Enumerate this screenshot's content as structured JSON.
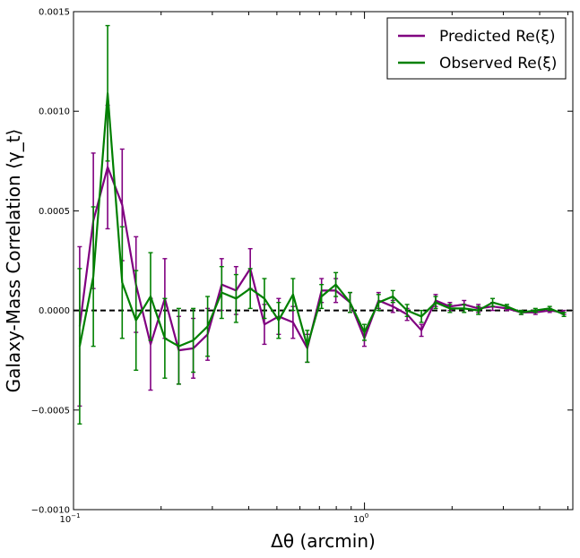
{
  "chart_data": {
    "type": "line",
    "xlabel": "Δθ (arcmin)",
    "ylabel": "Galaxy-Mass Correlation ⟨γ_t⟩",
    "xscale": "log",
    "xlim": [
      0.1,
      5.2
    ],
    "ylim": [
      -0.001,
      0.0015
    ],
    "xticks": [
      {
        "value": 0.1,
        "base": "10",
        "exp": "−1"
      },
      {
        "value": 1,
        "base": "10",
        "exp": "0"
      }
    ],
    "yticks": [
      {
        "value": -0.001,
        "label": "−0.0010"
      },
      {
        "value": -0.0005,
        "label": "−0.0005"
      },
      {
        "value": 0.0,
        "label": "0.0000"
      },
      {
        "value": 0.0005,
        "label": "0.0005"
      },
      {
        "value": 0.001,
        "label": "0.0010"
      },
      {
        "value": 0.0015,
        "label": "0.0015"
      }
    ],
    "reference_line": {
      "y": 0.0,
      "style": "dashed",
      "color": "#000000"
    },
    "legend_position": "top-right",
    "series": [
      {
        "name": "Predicted Re(ξ)",
        "color": "#800080",
        "x": [
          0.105,
          0.117,
          0.131,
          0.147,
          0.164,
          0.184,
          0.206,
          0.23,
          0.258,
          0.289,
          0.323,
          0.362,
          0.405,
          0.453,
          0.507,
          0.568,
          0.636,
          0.712,
          0.797,
          0.892,
          0.999,
          1.118,
          1.252,
          1.401,
          1.569,
          1.756,
          1.966,
          2.2,
          2.463,
          2.757,
          3.087,
          3.455,
          3.868,
          4.33,
          4.847
        ],
        "y": [
          -8e-05,
          0.00045,
          0.00072,
          0.00053,
          0.00013,
          -0.00017,
          6e-05,
          -0.0002,
          -0.00019,
          -0.00012,
          0.00013,
          0.0001,
          0.00021,
          -7e-05,
          -3e-05,
          -6e-05,
          -0.00019,
          0.0001,
          0.0001,
          4e-05,
          -0.00014,
          5e-05,
          2e-05,
          -2e-05,
          -0.0001,
          5e-05,
          2e-05,
          3e-05,
          1e-05,
          2e-05,
          1e-05,
          -1e-05,
          -1e-05,
          0.0,
          -1e-05
        ],
        "err": [
          0.0004,
          0.00034,
          0.00031,
          0.00028,
          0.00024,
          0.00023,
          0.0002,
          0.00017,
          0.00015,
          0.00013,
          0.00013,
          0.00012,
          0.0001,
          0.0001,
          9e-05,
          8e-05,
          7e-05,
          6e-05,
          6e-05,
          5e-05,
          4e-05,
          4e-05,
          3e-05,
          3e-05,
          3e-05,
          3e-05,
          2e-05,
          2e-05,
          2e-05,
          2e-05,
          1e-05,
          1e-05,
          1e-05,
          1e-05,
          1e-05
        ]
      },
      {
        "name": "Observed Re(ξ)",
        "color": "#008000",
        "x": [
          0.105,
          0.117,
          0.131,
          0.147,
          0.164,
          0.184,
          0.206,
          0.23,
          0.258,
          0.289,
          0.323,
          0.362,
          0.405,
          0.453,
          0.507,
          0.568,
          0.636,
          0.712,
          0.797,
          0.892,
          0.999,
          1.118,
          1.252,
          1.401,
          1.569,
          1.756,
          1.966,
          2.2,
          2.463,
          2.757,
          3.087,
          3.455,
          3.868,
          4.33,
          4.847
        ],
        "y": [
          -0.00018,
          0.00017,
          0.00109,
          0.00014,
          -5e-05,
          7e-05,
          -0.00014,
          -0.00018,
          -0.00015,
          -8e-05,
          9e-05,
          6e-05,
          0.00011,
          6e-05,
          -5e-05,
          8e-05,
          -0.00018,
          7e-05,
          0.00013,
          4e-05,
          -0.00011,
          4e-05,
          7e-05,
          0.0,
          -3e-05,
          4e-05,
          1e-05,
          1e-05,
          0.0,
          4e-05,
          2e-05,
          -1e-05,
          0.0,
          1e-05,
          -2e-05
        ],
        "err": [
          0.00039,
          0.00035,
          0.00034,
          0.00028,
          0.00025,
          0.00022,
          0.0002,
          0.00019,
          0.00016,
          0.00015,
          0.00013,
          0.00012,
          0.0001,
          0.0001,
          9e-05,
          8e-05,
          8e-05,
          6e-05,
          6e-05,
          5e-05,
          4e-05,
          4e-05,
          3e-05,
          3e-05,
          3e-05,
          3e-05,
          2e-05,
          2e-05,
          2e-05,
          2e-05,
          1e-05,
          1e-05,
          1e-05,
          1e-05,
          1e-05
        ]
      }
    ]
  }
}
